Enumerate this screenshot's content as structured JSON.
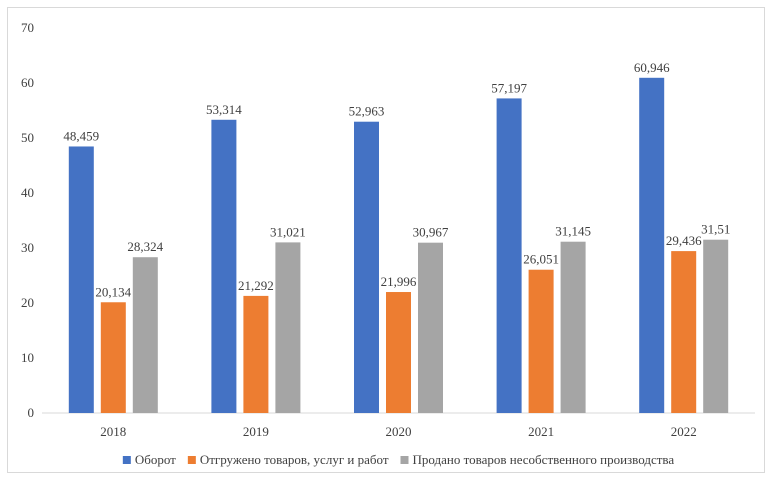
{
  "chart_data": {
    "type": "bar",
    "categories": [
      "2018",
      "2019",
      "2020",
      "2021",
      "2022"
    ],
    "series": [
      {
        "name": "Оборот",
        "color": "#4472c4",
        "values": [
          48.459,
          53.314,
          52.963,
          57.197,
          60.946
        ],
        "labels": [
          "48,459",
          "53,314",
          "52,963",
          "57,197",
          "60,946"
        ]
      },
      {
        "name": "Отгружено товаров, услуг и работ",
        "color": "#ed7d31",
        "values": [
          20.134,
          21.292,
          21.996,
          26.051,
          29.436
        ],
        "labels": [
          "20,134",
          "21,292",
          "21,996",
          "26,051",
          "29,436"
        ]
      },
      {
        "name": "Продано товаров несобственного производства",
        "color": "#a5a5a5",
        "values": [
          28.324,
          31.021,
          30.967,
          31.145,
          31.51
        ],
        "labels": [
          "28,324",
          "31,021",
          "30,967",
          "31,145",
          "31,51"
        ]
      }
    ],
    "yticks": [
      "0",
      "10",
      "20",
      "30",
      "40",
      "50",
      "60",
      "70"
    ],
    "ylim": [
      0,
      70
    ],
    "grid": false,
    "legend": "bottom"
  }
}
